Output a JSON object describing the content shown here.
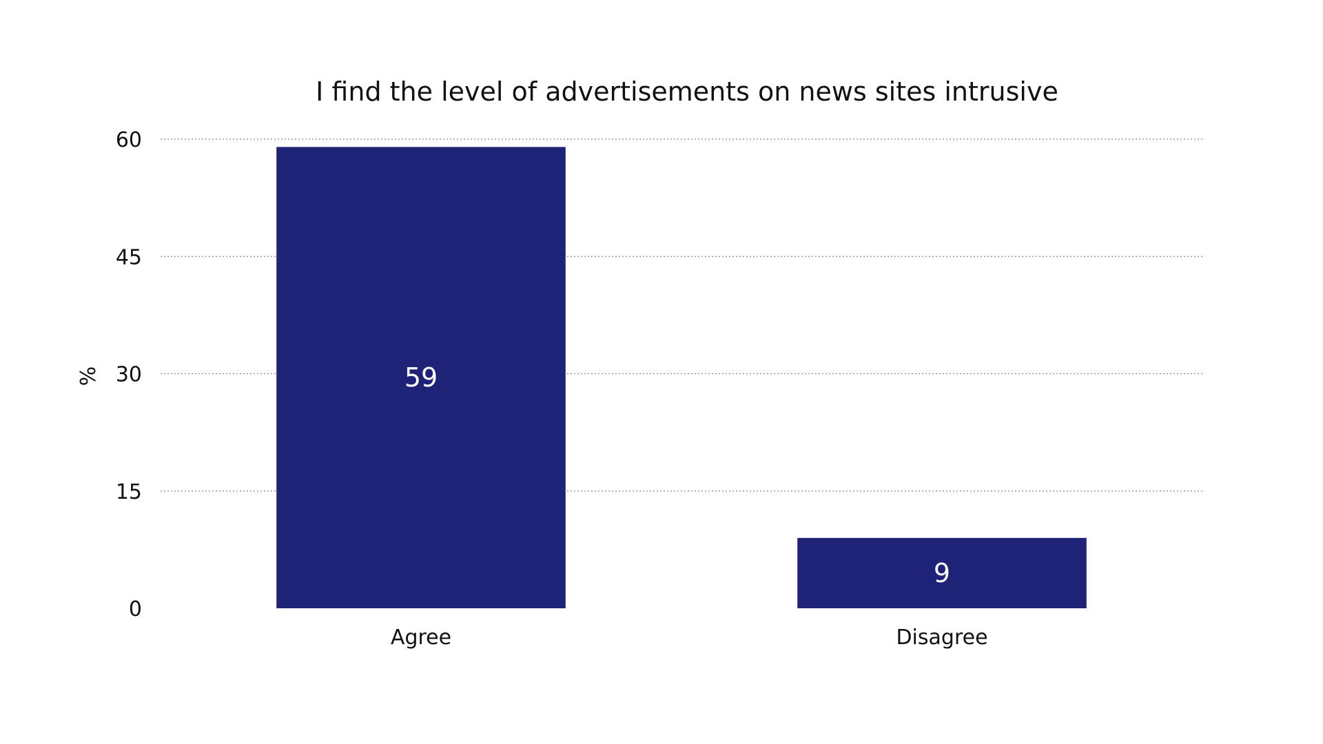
{
  "chart_data": {
    "type": "bar",
    "title": "I find the level of advertisements on news sites intrusive",
    "xlabel": "",
    "ylabel": "%",
    "categories": [
      "Agree",
      "Disagree"
    ],
    "values": [
      59,
      9
    ],
    "data_labels": [
      "59",
      "9"
    ],
    "ylim": [
      0,
      60
    ],
    "yticks": [
      0,
      15,
      30,
      45,
      60
    ],
    "grid": true,
    "legend": "none",
    "bar_color": "#1e2378"
  }
}
